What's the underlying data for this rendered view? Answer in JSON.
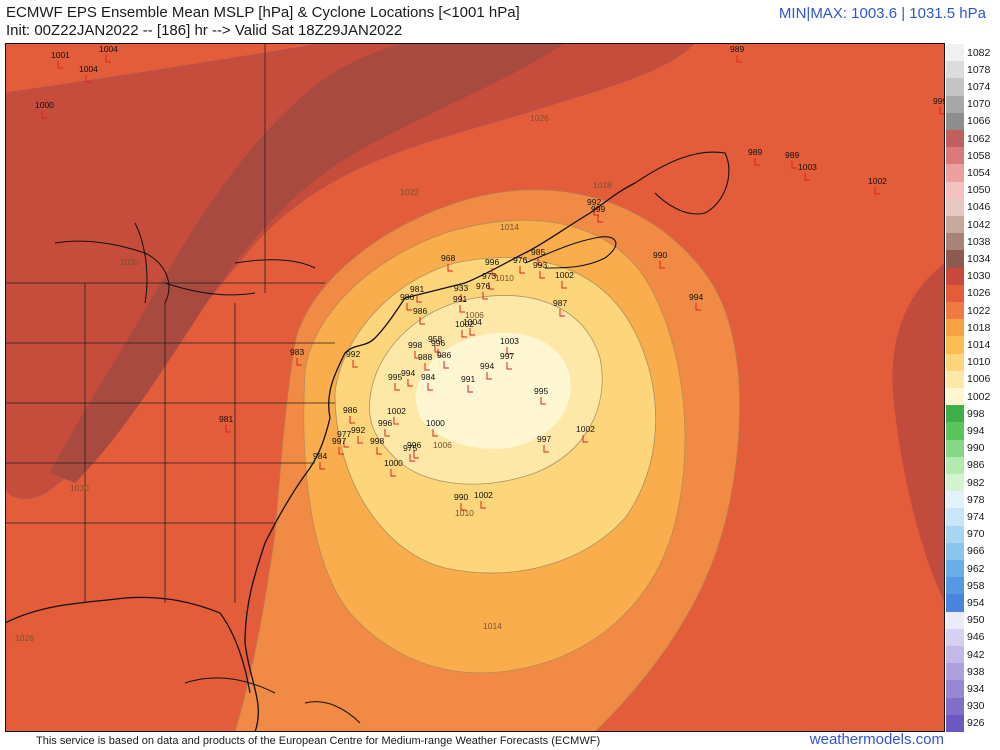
{
  "header": {
    "title_line1": "ECMWF EPS Ensemble Mean MSLP [hPa] & Cyclone Locations [<1001 hPa]",
    "title_line2": "Init: 00Z22JAN2022 -- [186] hr --> Valid Sat 18Z29JAN2022",
    "minmax": "MIN|MAX: 1003.6 | 1031.5 hPa"
  },
  "footer": {
    "disclaimer": "This service is based on data and products of the European Centre for Medium-range Weather Forecasts (ECMWF)",
    "brand": "weathermodels.com"
  },
  "colorbar": {
    "levels": [
      "1082",
      "1078",
      "1074",
      "1070",
      "1066",
      "1062",
      "1058",
      "1054",
      "1050",
      "1046",
      "1042",
      "1038",
      "1034",
      "1030",
      "1026",
      "1022",
      "1018",
      "1014",
      "1010",
      "1006",
      "1002",
      "998",
      "994",
      "990",
      "986",
      "982",
      "978",
      "974",
      "970",
      "966",
      "962",
      "958",
      "954",
      "950",
      "946",
      "942",
      "938",
      "934",
      "930",
      "926"
    ],
    "colors": [
      "#f0f0f0",
      "#dcdcdc",
      "#c4c4c4",
      "#a8a8a8",
      "#8e8e8e",
      "#c0605e",
      "#d87a7a",
      "#eca0a0",
      "#f4c0c0",
      "#e8c8c0",
      "#c9a89c",
      "#a88478",
      "#8c5a50",
      "#c84a3c",
      "#e35d3a",
      "#f07a40",
      "#f7a142",
      "#fbbd52",
      "#fdd57a",
      "#fee8a8",
      "#fff6d2",
      "#3fae4a",
      "#5cc45c",
      "#86d886",
      "#b2eab0",
      "#d4f4d0",
      "#e4f2fa",
      "#c8e6f7",
      "#a8d6f2",
      "#8cc4ee",
      "#6aaee8",
      "#5898e2",
      "#4a84dc",
      "#eeeaf8",
      "#d8d0f0",
      "#c4b8e6",
      "#aea0dc",
      "#9888d2",
      "#8270c8",
      "#6c58be"
    ]
  },
  "contour_labels": [
    "1030",
    "1026",
    "1022",
    "1018",
    "1014",
    "1010",
    "1006",
    "1030",
    "1026",
    "1014",
    "1010",
    "1006"
  ],
  "cyclone_pressures": [
    "1001",
    "1004",
    "1004",
    "1000",
    "989",
    "999",
    "989",
    "989",
    "1003",
    "1002",
    "990",
    "994",
    "992",
    "999",
    "968",
    "996",
    "985",
    "993",
    "976",
    "973",
    "976",
    "933",
    "1002",
    "981",
    "991",
    "987",
    "986",
    "986",
    "1003",
    "1004",
    "1002",
    "958",
    "996",
    "998",
    "988",
    "986",
    "992",
    "984",
    "994",
    "995",
    "994",
    "991",
    "995",
    "997",
    "983",
    "981",
    "986",
    "1002",
    "996",
    "1000",
    "992",
    "977",
    "997",
    "998",
    "984",
    "975",
    "996",
    "1000",
    "1002",
    "990",
    "1002",
    "997"
  ],
  "colors": {
    "brand": "#2f55d4",
    "marker": "#e02020"
  }
}
